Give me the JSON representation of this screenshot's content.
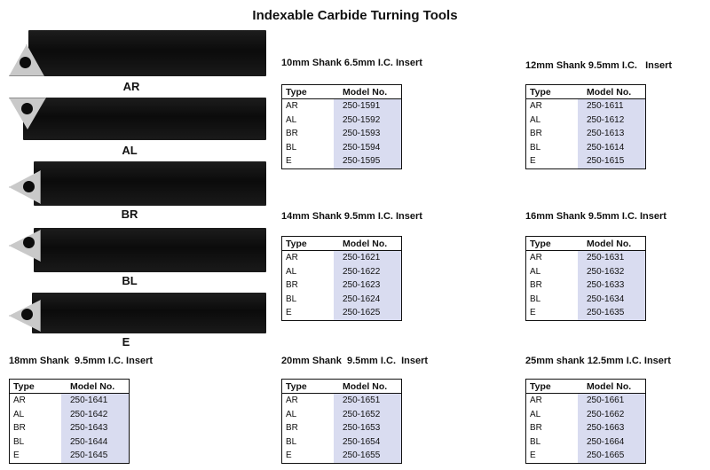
{
  "title": "Indexable Carbide Turning Tools",
  "tools": [
    "AR",
    "AL",
    "BR",
    "BL",
    "E"
  ],
  "column_headers": {
    "type": "Type",
    "model": "Model No."
  },
  "sections": [
    {
      "title": "10mm Shank 6.5mm I.C. Insert",
      "rows": [
        [
          "AR",
          "250-1591"
        ],
        [
          "AL",
          "250-1592"
        ],
        [
          "BR",
          "250-1593"
        ],
        [
          "BL",
          "250-1594"
        ],
        [
          "E",
          "250-1595"
        ]
      ]
    },
    {
      "title": "12mm Shank 9.5mm I.C.   Insert",
      "rows": [
        [
          "AR",
          "250-1611"
        ],
        [
          "AL",
          "250-1612"
        ],
        [
          "BR",
          "250-1613"
        ],
        [
          "BL",
          "250-1614"
        ],
        [
          "E",
          "250-1615"
        ]
      ]
    },
    {
      "title": "14mm Shank 9.5mm I.C. Insert",
      "rows": [
        [
          "AR",
          "250-1621"
        ],
        [
          "AL",
          "250-1622"
        ],
        [
          "BR",
          "250-1623"
        ],
        [
          "BL",
          "250-1624"
        ],
        [
          "E",
          "250-1625"
        ]
      ]
    },
    {
      "title": "16mm Shank 9.5mm I.C. Insert",
      "rows": [
        [
          "AR",
          "250-1631"
        ],
        [
          "AL",
          "250-1632"
        ],
        [
          "BR",
          "250-1633"
        ],
        [
          "BL",
          "250-1634"
        ],
        [
          "E",
          "250-1635"
        ]
      ]
    },
    {
      "title": "18mm Shank  9.5mm I.C. Insert",
      "rows": [
        [
          "AR",
          "250-1641"
        ],
        [
          "AL",
          "250-1642"
        ],
        [
          "BR",
          "250-1643"
        ],
        [
          "BL",
          "250-1644"
        ],
        [
          "E",
          "250-1645"
        ]
      ]
    },
    {
      "title": "20mm Shank  9.5mm I.C.  Insert",
      "rows": [
        [
          "AR",
          "250-1651"
        ],
        [
          "AL",
          "250-1652"
        ],
        [
          "BR",
          "250-1653"
        ],
        [
          "BL",
          "250-1654"
        ],
        [
          "E",
          "250-1655"
        ]
      ]
    },
    {
      "title": "25mm shank 12.5mm I.C. Insert",
      "rows": [
        [
          "AR",
          "250-1661"
        ],
        [
          "AL",
          "250-1662"
        ],
        [
          "BR",
          "250-1663"
        ],
        [
          "BL",
          "250-1664"
        ],
        [
          "E",
          "250-1665"
        ]
      ]
    }
  ]
}
